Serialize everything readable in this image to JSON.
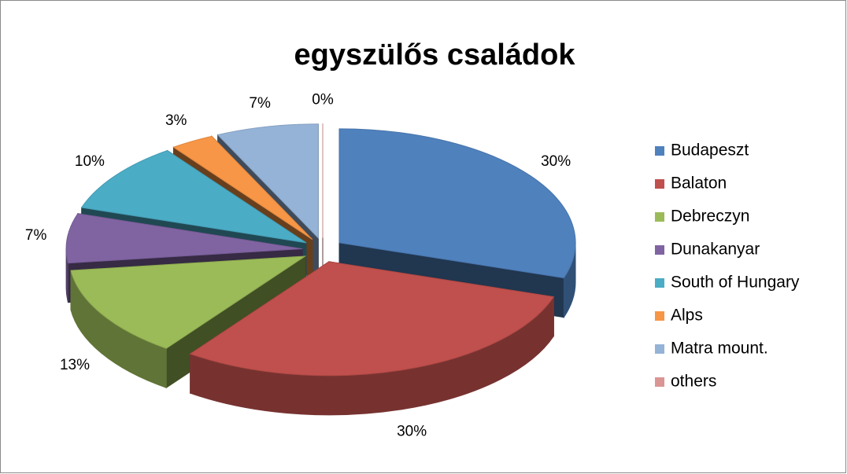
{
  "chart_data": {
    "type": "pie3d",
    "title": "egyszülős családok",
    "categories": [
      "Budapeszt",
      "Balaton",
      "Debreczyn",
      "Dunakanyar",
      "South of Hungary",
      "Alps",
      "Matra mount.",
      "others"
    ],
    "values": [
      30,
      30,
      13,
      7,
      10,
      3,
      7,
      0
    ],
    "value_labels": [
      "30%",
      "30%",
      "13%",
      "7%",
      "10%",
      "3%",
      "7%",
      "0%"
    ],
    "colors": [
      "#4f81bd",
      "#c0504d",
      "#9bbb59",
      "#8064a2",
      "#4bacc6",
      "#f79646",
      "#95b3d7",
      "#d99694"
    ],
    "legend": "right"
  }
}
